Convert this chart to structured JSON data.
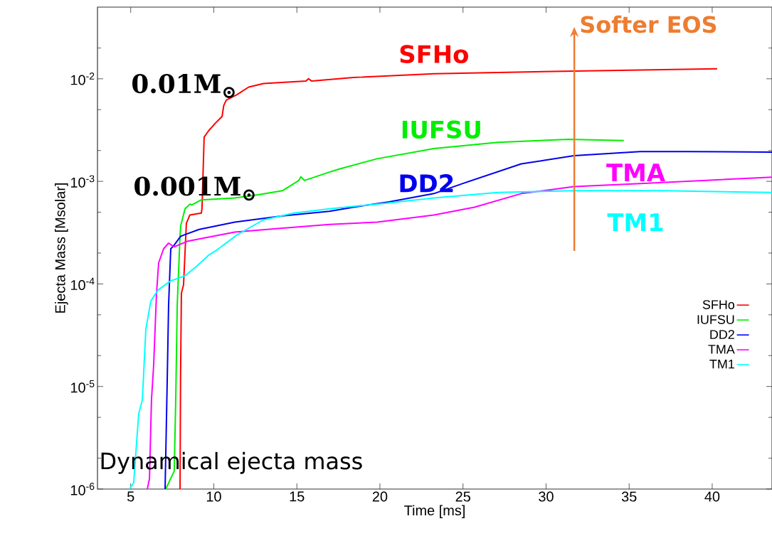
{
  "chart_data": {
    "type": "line",
    "xlabel": "Time [ms]",
    "ylabel": "Ejecta Mass [Msolar]",
    "log": "y",
    "xlim": [
      3,
      43.6
    ],
    "ylim": [
      1e-06,
      0.05
    ],
    "xticks": [
      5,
      10,
      15,
      20,
      25,
      30,
      35,
      40
    ],
    "yticks": [
      {
        "value": 1e-06,
        "label": "10$^{-6}$"
      },
      {
        "value": 1e-05,
        "label": "10$^{-5}$"
      },
      {
        "value": 0.0001,
        "label": "10$^{-4}$"
      },
      {
        "value": 0.001,
        "label": "10$^{-3}$"
      },
      {
        "value": 0.01,
        "label": "10$^{-2}$"
      }
    ],
    "grid": false,
    "legend": "right",
    "marker": "none",
    "line_style": "solid",
    "series": [
      {
        "name": "SFHo",
        "color": "#ff0000",
        "x": [
          7.97,
          8.0,
          8.05,
          8.18,
          8.35,
          8.56,
          9.25,
          9.29,
          9.42,
          9.68,
          10.1,
          10.5,
          10.6,
          10.75,
          11.4,
          12.1,
          13.0,
          15.55,
          15.7,
          15.9,
          18.4,
          23.25,
          31.7,
          40.3
        ],
        "values": [
          1e-06,
          1.2e-05,
          8.1e-05,
          9.8e-05,
          0.00039,
          0.00047,
          0.00049,
          0.00054,
          0.0027,
          0.0031,
          0.0037,
          0.0043,
          0.0055,
          0.0062,
          0.007,
          0.0083,
          0.009,
          0.0095,
          0.01,
          0.0095,
          0.0103,
          0.0112,
          0.0119,
          0.0125
        ]
      },
      {
        "name": "IUFSU",
        "color": "#00ee00",
        "x": [
          7.11,
          7.62,
          7.71,
          7.8,
          7.97,
          8.01,
          8.27,
          8.57,
          8.69,
          9.25,
          11.26,
          12.67,
          14.13,
          15.12,
          15.24,
          15.46,
          16.96,
          17.56,
          19.83,
          23.25,
          27.1,
          31.38,
          34.68
        ],
        "values": [
          1e-06,
          1.5e-06,
          7.4e-06,
          6.2e-05,
          0.0003,
          0.00037,
          0.00054,
          0.0006,
          0.00059,
          0.00066,
          0.00069,
          0.00074,
          0.00081,
          0.00102,
          0.00111,
          0.00102,
          0.00123,
          0.00132,
          0.00166,
          0.00209,
          0.0024,
          0.00257,
          0.0025
        ]
      },
      {
        "name": "DD2",
        "color": "#0000ee",
        "x": [
          7.07,
          7.2,
          7.28,
          7.41,
          7.62,
          8.0,
          8.2,
          9.12,
          11.26,
          14.13,
          16.96,
          18.41,
          20.55,
          23.25,
          24.96,
          28.51,
          31.68,
          35.66,
          38.53,
          43.6
        ],
        "values": [
          1e-06,
          1.2e-05,
          6.2e-05,
          0.00022,
          0.00024,
          0.00029,
          0.0003,
          0.00034,
          0.0004,
          0.00046,
          0.00051,
          0.00056,
          0.00063,
          0.00076,
          0.00095,
          0.00148,
          0.00178,
          0.00195,
          0.00195,
          0.00193
        ]
      },
      {
        "name": "TMA",
        "color": "#ff00ff",
        "x": [
          6.0,
          6.13,
          6.25,
          6.38,
          6.55,
          6.68,
          6.98,
          7.28,
          7.62,
          8.39,
          11.26,
          14.13,
          16.96,
          19.83,
          23.25,
          25.69,
          28.51,
          31.68,
          35.66,
          43.6
        ],
        "values": [
          1e-06,
          1.26e-06,
          7.4e-06,
          1.6e-05,
          7.9e-05,
          0.00016,
          0.00022,
          0.00025,
          0.00023,
          0.00026,
          0.00032,
          0.00035,
          0.00038,
          0.0004,
          0.00047,
          0.00056,
          0.00076,
          0.00089,
          0.00095,
          0.0011
        ]
      },
      {
        "name": "TM1",
        "color": "#00ffff",
        "x": [
          4.93,
          5.18,
          5.48,
          5.7,
          5.91,
          6.21,
          6.64,
          7.41,
          8.27,
          9.0,
          9.68,
          10.11,
          11.39,
          12.97,
          14.81,
          16.96,
          19.83,
          23.25,
          27.1,
          31.68,
          37.07,
          43.6
        ],
        "values": [
          1e-06,
          1.15e-06,
          5.4e-06,
          7.4e-06,
          3.6e-05,
          6.8e-05,
          8.7e-05,
          0.000107,
          0.00012,
          0.00015,
          0.00019,
          0.00021,
          0.0003,
          0.00042,
          0.00049,
          0.00054,
          0.0006,
          0.00069,
          0.00078,
          0.00081,
          0.00081,
          0.00078
        ]
      }
    ],
    "annotations": [
      {
        "text": "0.01M$_{⊙}$",
        "x": 10.8,
        "y": 0.0068
      },
      {
        "text": "0.001M$_{⊙}$",
        "x": 12.0,
        "y": 0.00068
      },
      "Softer EOS",
      "Dynamical ejecta mass"
    ]
  }
}
